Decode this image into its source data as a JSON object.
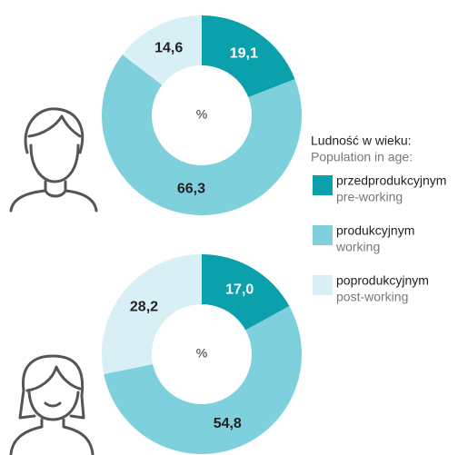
{
  "chart_data": [
    {
      "type": "pie",
      "center_label": "%",
      "values": [
        19.1,
        66.3,
        14.6
      ],
      "value_labels": [
        "19,1",
        "66,3",
        "14,6"
      ],
      "colors": [
        "#0aa0ac",
        "#7fd0dd",
        "#d8f0f5"
      ]
    },
    {
      "type": "pie",
      "center_label": "%",
      "values": [
        17.0,
        54.8,
        28.2
      ],
      "value_labels": [
        "17,0",
        "54,8",
        "28,2"
      ],
      "colors": [
        "#0aa0ac",
        "#7fd0dd",
        "#d8f0f5"
      ]
    }
  ],
  "legend": {
    "title": "Ludność w wieku:",
    "subtitle": "Population in age:",
    "items": [
      {
        "name": "przedprodukcyjnym",
        "name_en": "pre-working"
      },
      {
        "name": "produkcyjnym",
        "name_en": "working"
      },
      {
        "name": "poprodukcyjnym",
        "name_en": "post-working"
      }
    ]
  }
}
